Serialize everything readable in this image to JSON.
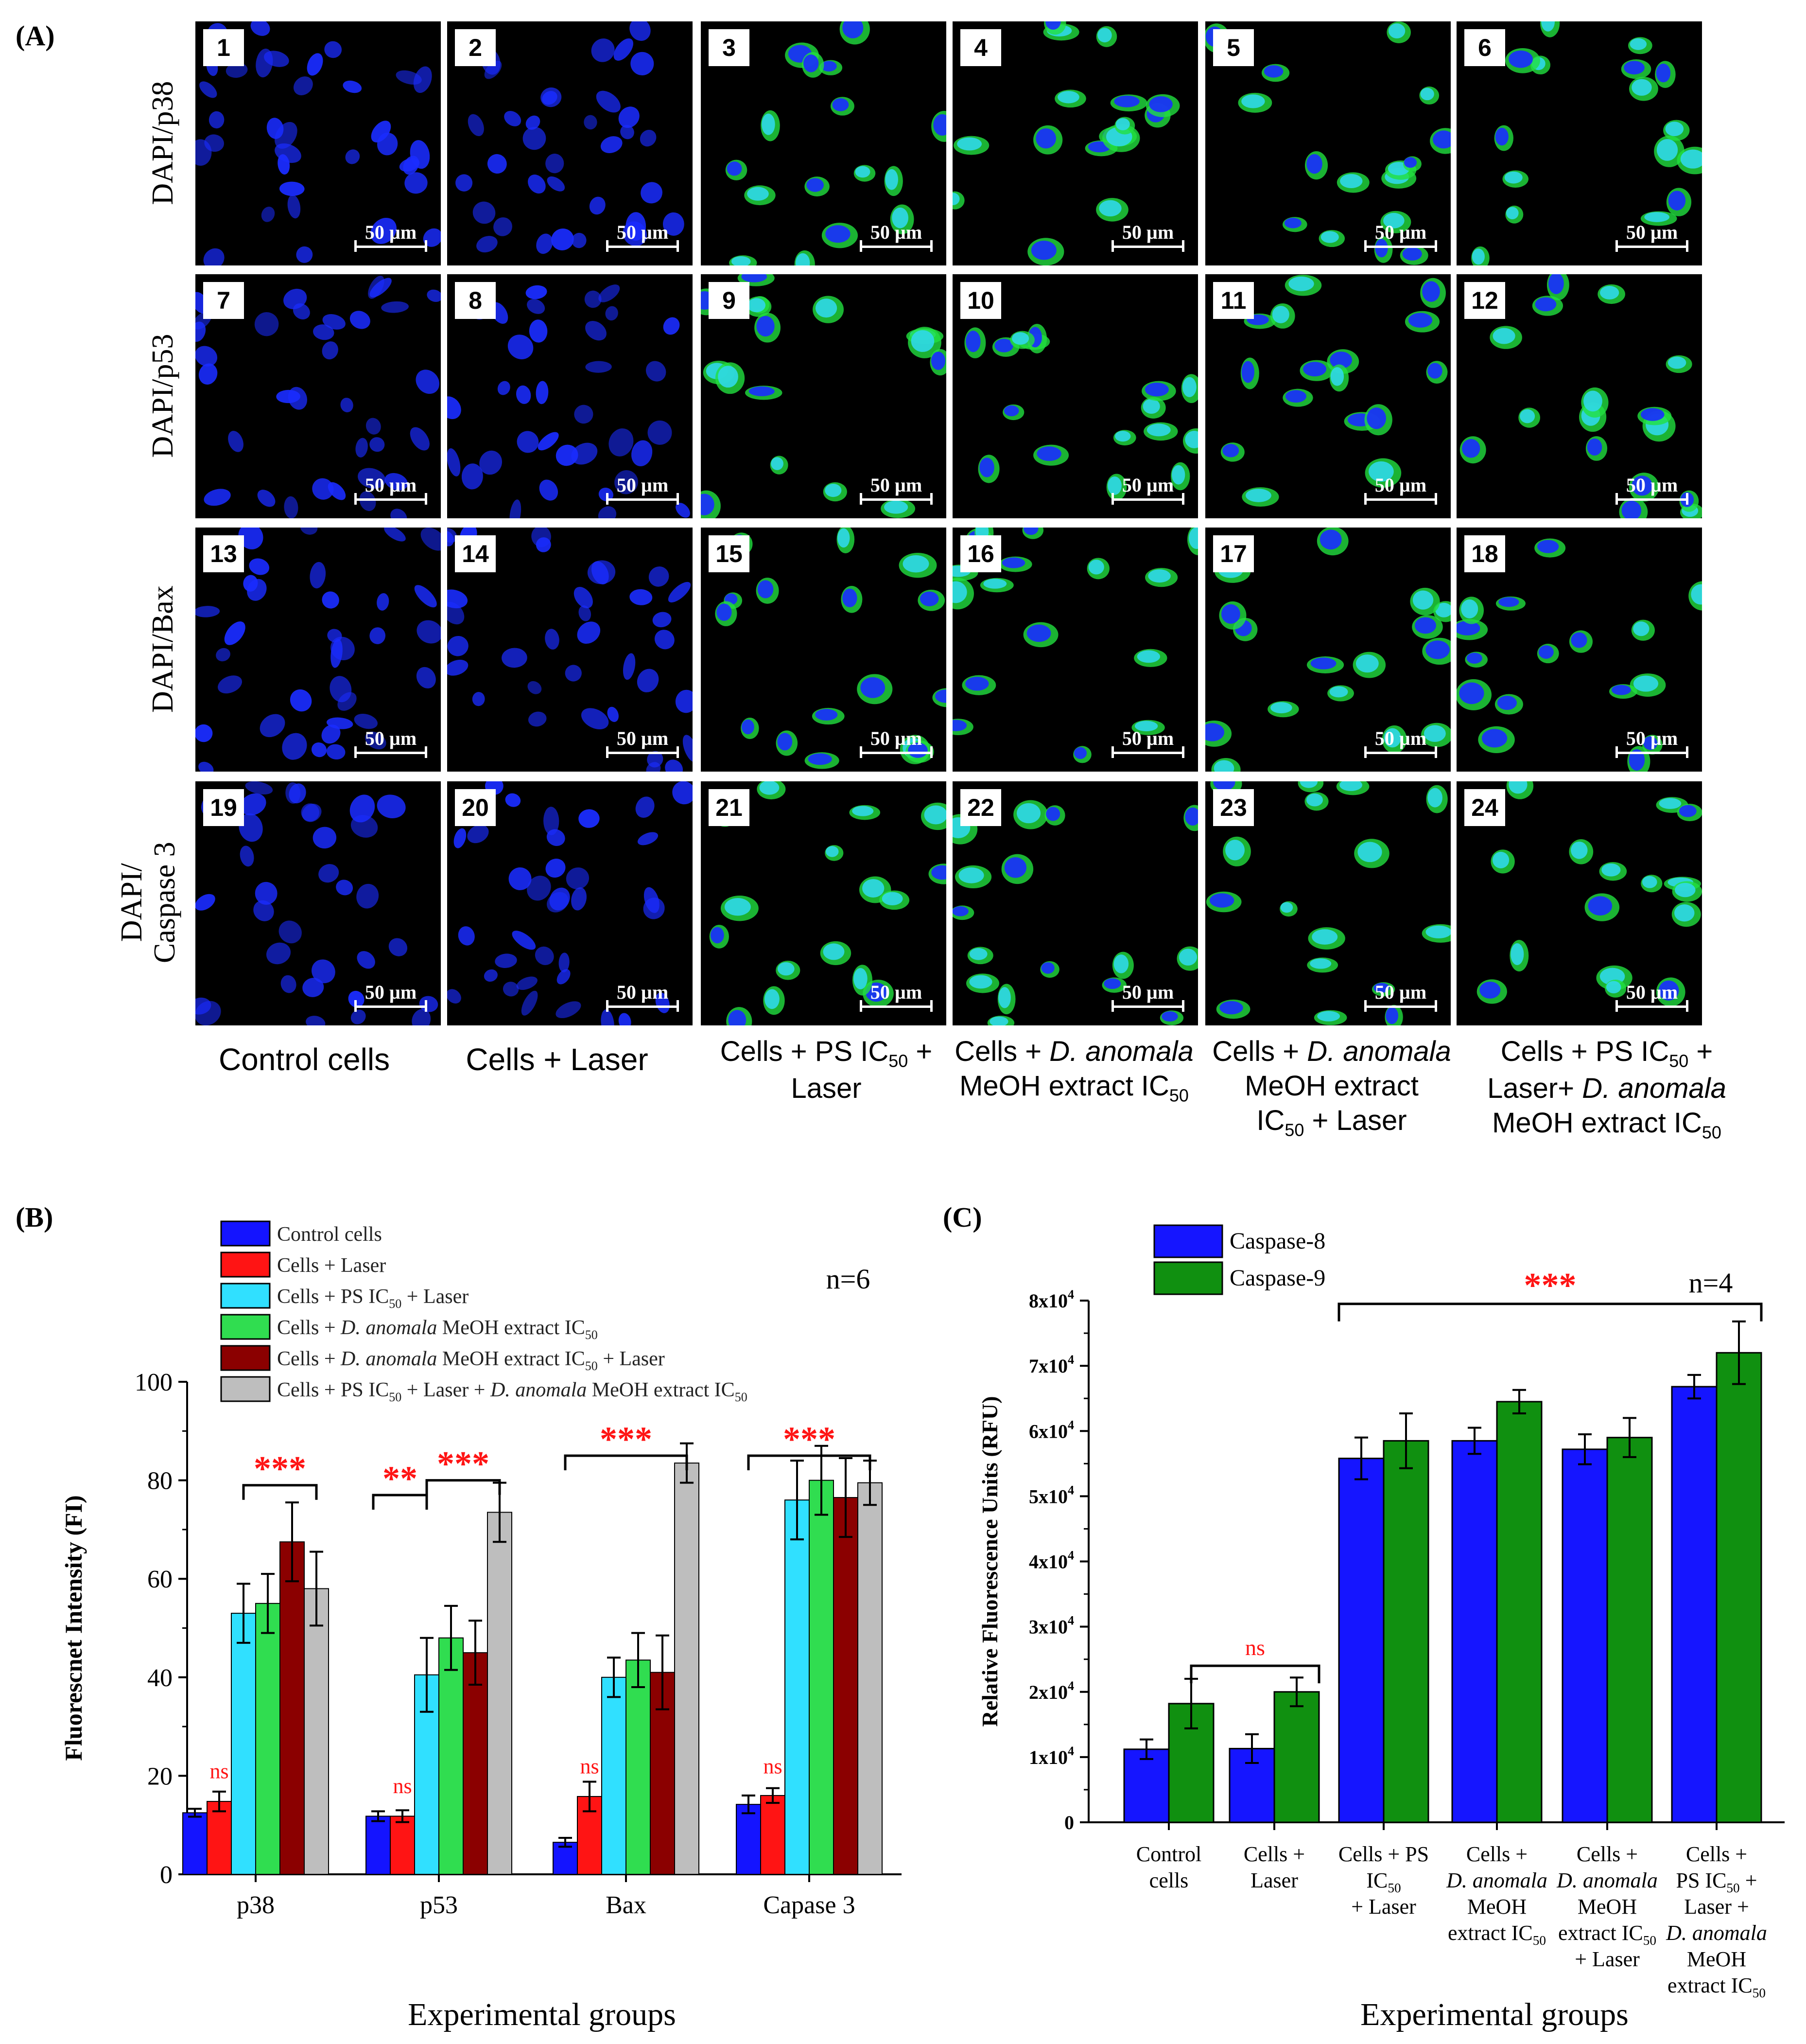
{
  "panel_a": {
    "letter": "(A)",
    "rows": [
      "DAPI/p38",
      "DAPI/p53",
      "DAPI/Bax",
      "DAPI/\nCaspase 3"
    ],
    "scale_text": "50 µm",
    "columns": [
      {
        "parts": [
          {
            "t": "Control cells"
          }
        ]
      },
      {
        "parts": [
          {
            "t": "Cells + Laser"
          }
        ]
      },
      {
        "parts": [
          {
            "t": "Cells + PS IC"
          },
          {
            "t": "50",
            "sub": true
          },
          {
            "t": " +\nLaser"
          }
        ]
      },
      {
        "parts": [
          {
            "t": "Cells + "
          },
          {
            "t": "D. anomala",
            "it": true
          },
          {
            "t": "\nMeOH extract  IC"
          },
          {
            "t": "50",
            "sub": true
          }
        ]
      },
      {
        "parts": [
          {
            "t": "Cells + "
          },
          {
            "t": "D. anomala",
            "it": true
          },
          {
            "t": "\nMeOH extract\nIC"
          },
          {
            "t": "50",
            "sub": true
          },
          {
            "t": " + Laser"
          }
        ]
      },
      {
        "parts": [
          {
            "t": "Cells + PS IC"
          },
          {
            "t": "50",
            "sub": true
          },
          {
            "t": " +\nLaser+ "
          },
          {
            "t": "D. anomala",
            "it": true
          },
          {
            "t": "\nMeOH extract  IC"
          },
          {
            "t": "50",
            "sub": true
          }
        ]
      }
    ],
    "tiles": [
      "1",
      "2",
      "3",
      "4",
      "5",
      "6",
      "7",
      "8",
      "9",
      "10",
      "11",
      "12",
      "13",
      "14",
      "15",
      "16",
      "17",
      "18",
      "19",
      "20",
      "21",
      "22",
      "23",
      "24"
    ],
    "colors": {
      "dapi": "#1a2cff",
      "green": "#22e040",
      "cyan": "#30d8e8",
      "background": "#000000"
    }
  },
  "chart_data": [
    {
      "type": "bar",
      "letter": "(B)",
      "xlabel": "Experimental groups",
      "ylabel": "Fluorescnet Intensity (FI)",
      "ylim": [
        0,
        100
      ],
      "yticks": [
        "0",
        "20",
        "40",
        "60",
        "80",
        "100"
      ],
      "categories": [
        "p38",
        "p53",
        "Bax",
        "Capase 3"
      ],
      "n_label": "n=6",
      "series": [
        {
          "name": "Control cells",
          "legend": [
            {
              "t": "Control cells"
            }
          ],
          "color": "#1414ff",
          "values": [
            12.5,
            11.8,
            6.5,
            14.2
          ],
          "errors": [
            0.8,
            1.0,
            0.9,
            1.8
          ]
        },
        {
          "name": "Cells + Laser",
          "legend": [
            {
              "t": "Cells + Laser"
            }
          ],
          "color": "#ff1414",
          "values": [
            14.8,
            11.8,
            15.8,
            16.0
          ],
          "errors": [
            2.0,
            1.2,
            3.0,
            1.5
          ]
        },
        {
          "name": "Cells + PS IC50 + Laser",
          "legend": [
            {
              "t": "Cells + PS IC"
            },
            {
              "t": "50",
              "sub": true
            },
            {
              "t": " + Laser"
            }
          ],
          "color": "#30e0ff",
          "values": [
            53.0,
            40.5,
            40.0,
            76.0
          ],
          "errors": [
            6.0,
            7.5,
            4.0,
            8.0
          ]
        },
        {
          "name": "Cells + D. anomala MeOH extract IC50",
          "legend": [
            {
              "t": "Cells + "
            },
            {
              "t": "D. anomala",
              "it": true
            },
            {
              "t": " MeOH extract IC"
            },
            {
              "t": "50",
              "sub": true
            }
          ],
          "color": "#30dd50",
          "values": [
            55.0,
            48.0,
            43.5,
            80.0
          ],
          "errors": [
            6.0,
            6.5,
            5.5,
            7.0
          ]
        },
        {
          "name": "Cells + D. anomala MeOH extract IC50 + Laser",
          "legend": [
            {
              "t": "Cells + "
            },
            {
              "t": "D. anomala",
              "it": true
            },
            {
              "t": " MeOH extract IC"
            },
            {
              "t": "50",
              "sub": true
            },
            {
              "t": " + Laser"
            }
          ],
          "color": "#8b0000",
          "values": [
            67.5,
            45.0,
            41.0,
            76.5
          ],
          "errors": [
            8.0,
            6.5,
            7.5,
            8.0
          ]
        },
        {
          "name": "Cells + PS IC50 + Laser + D. anomala MeOH extract IC50",
          "legend": [
            {
              "t": "Cells + PS IC"
            },
            {
              "t": "50",
              "sub": true
            },
            {
              "t": " + Laser + "
            },
            {
              "t": "D. anomala",
              "it": true
            },
            {
              "t": " MeOH extract IC"
            },
            {
              "t": "50",
              "sub": true
            }
          ],
          "color": "#bebebe",
          "values": [
            58.0,
            73.5,
            83.5,
            79.5
          ],
          "errors": [
            7.5,
            6.0,
            4.0,
            4.5
          ]
        }
      ],
      "annotations": [
        {
          "text": "***",
          "category": 0,
          "from": 2,
          "to": 5,
          "y": 79,
          "tick": 3
        },
        {
          "text": "***",
          "category": 1,
          "from": 2,
          "to": 5,
          "y": 80,
          "tick": 3
        },
        {
          "text": "**",
          "category": 1,
          "from": 0,
          "to": 2,
          "y": 77,
          "tick": 3,
          "span_from_cat_edge": true
        },
        {
          "text": "***",
          "category": 2,
          "from": 0,
          "to": 5,
          "y": 85,
          "tick": 4
        },
        {
          "text": "***",
          "category": 3,
          "from": 0,
          "to": 5,
          "y": 85,
          "tick": 4
        },
        {
          "text": "ns",
          "category": 0,
          "series": 1,
          "y": 19.5
        },
        {
          "text": "ns",
          "category": 1,
          "series": 1,
          "y": 16.5
        },
        {
          "text": "ns",
          "category": 2,
          "series": 1,
          "y": 20.5
        },
        {
          "text": "ns",
          "category": 3,
          "series": 1,
          "y": 20.5
        }
      ]
    },
    {
      "type": "bar",
      "letter": "(C)",
      "xlabel": "Experimental groups",
      "ylabel": "Relative Fluorescence Units (RFU)",
      "ylim": [
        0,
        80000
      ],
      "yticks": [
        "0",
        "1x10",
        "2x10",
        "3x10",
        "4x10",
        "5x10",
        "6x10",
        "7x10",
        "8x10"
      ],
      "ytick_sup": "4",
      "n_label": "n=4",
      "categories": [
        {
          "parts": [
            {
              "t": "Control\ncells"
            }
          ]
        },
        {
          "parts": [
            {
              "t": "Cells +\nLaser"
            }
          ]
        },
        {
          "parts": [
            {
              "t": "Cells + PS\nIC"
            },
            {
              "t": "50",
              "sub": true
            },
            {
              "t": "\n+ Laser"
            }
          ]
        },
        {
          "parts": [
            {
              "t": "Cells +\n"
            },
            {
              "t": "D. anomala",
              "it": true
            },
            {
              "t": "\nMeOH\nextract  IC"
            },
            {
              "t": "50",
              "sub": true
            }
          ]
        },
        {
          "parts": [
            {
              "t": "Cells +\n"
            },
            {
              "t": "D. anomala",
              "it": true
            },
            {
              "t": "\nMeOH\nextract  IC"
            },
            {
              "t": "50",
              "sub": true
            },
            {
              "t": "\n+ Laser"
            }
          ]
        },
        {
          "parts": [
            {
              "t": "Cells +\nPS IC"
            },
            {
              "t": "50",
              "sub": true
            },
            {
              "t": " +\nLaser +\n"
            },
            {
              "t": "D. anomala",
              "it": true
            },
            {
              "t": "\nMeOH\nextract  IC"
            },
            {
              "t": "50",
              "sub": true
            }
          ]
        }
      ],
      "series": [
        {
          "name": "Caspase-8",
          "color": "#1515ff",
          "values": [
            11200,
            11300,
            55800,
            58500,
            57200,
            66800
          ],
          "errors": [
            1500,
            2200,
            3200,
            2000,
            2300,
            1800
          ]
        },
        {
          "name": "Caspase-9",
          "color": "#109010",
          "values": [
            18200,
            20000,
            58500,
            64500,
            59000,
            72000
          ],
          "errors": [
            3800,
            2200,
            4200,
            1800,
            3000,
            4800
          ]
        }
      ],
      "annotations": [
        {
          "text": "***",
          "from": 2,
          "to": 5,
          "y": 79500
        },
        {
          "text": "ns",
          "from": 0,
          "to": 1,
          "y": 24000,
          "from_side": 1
        }
      ]
    }
  ]
}
